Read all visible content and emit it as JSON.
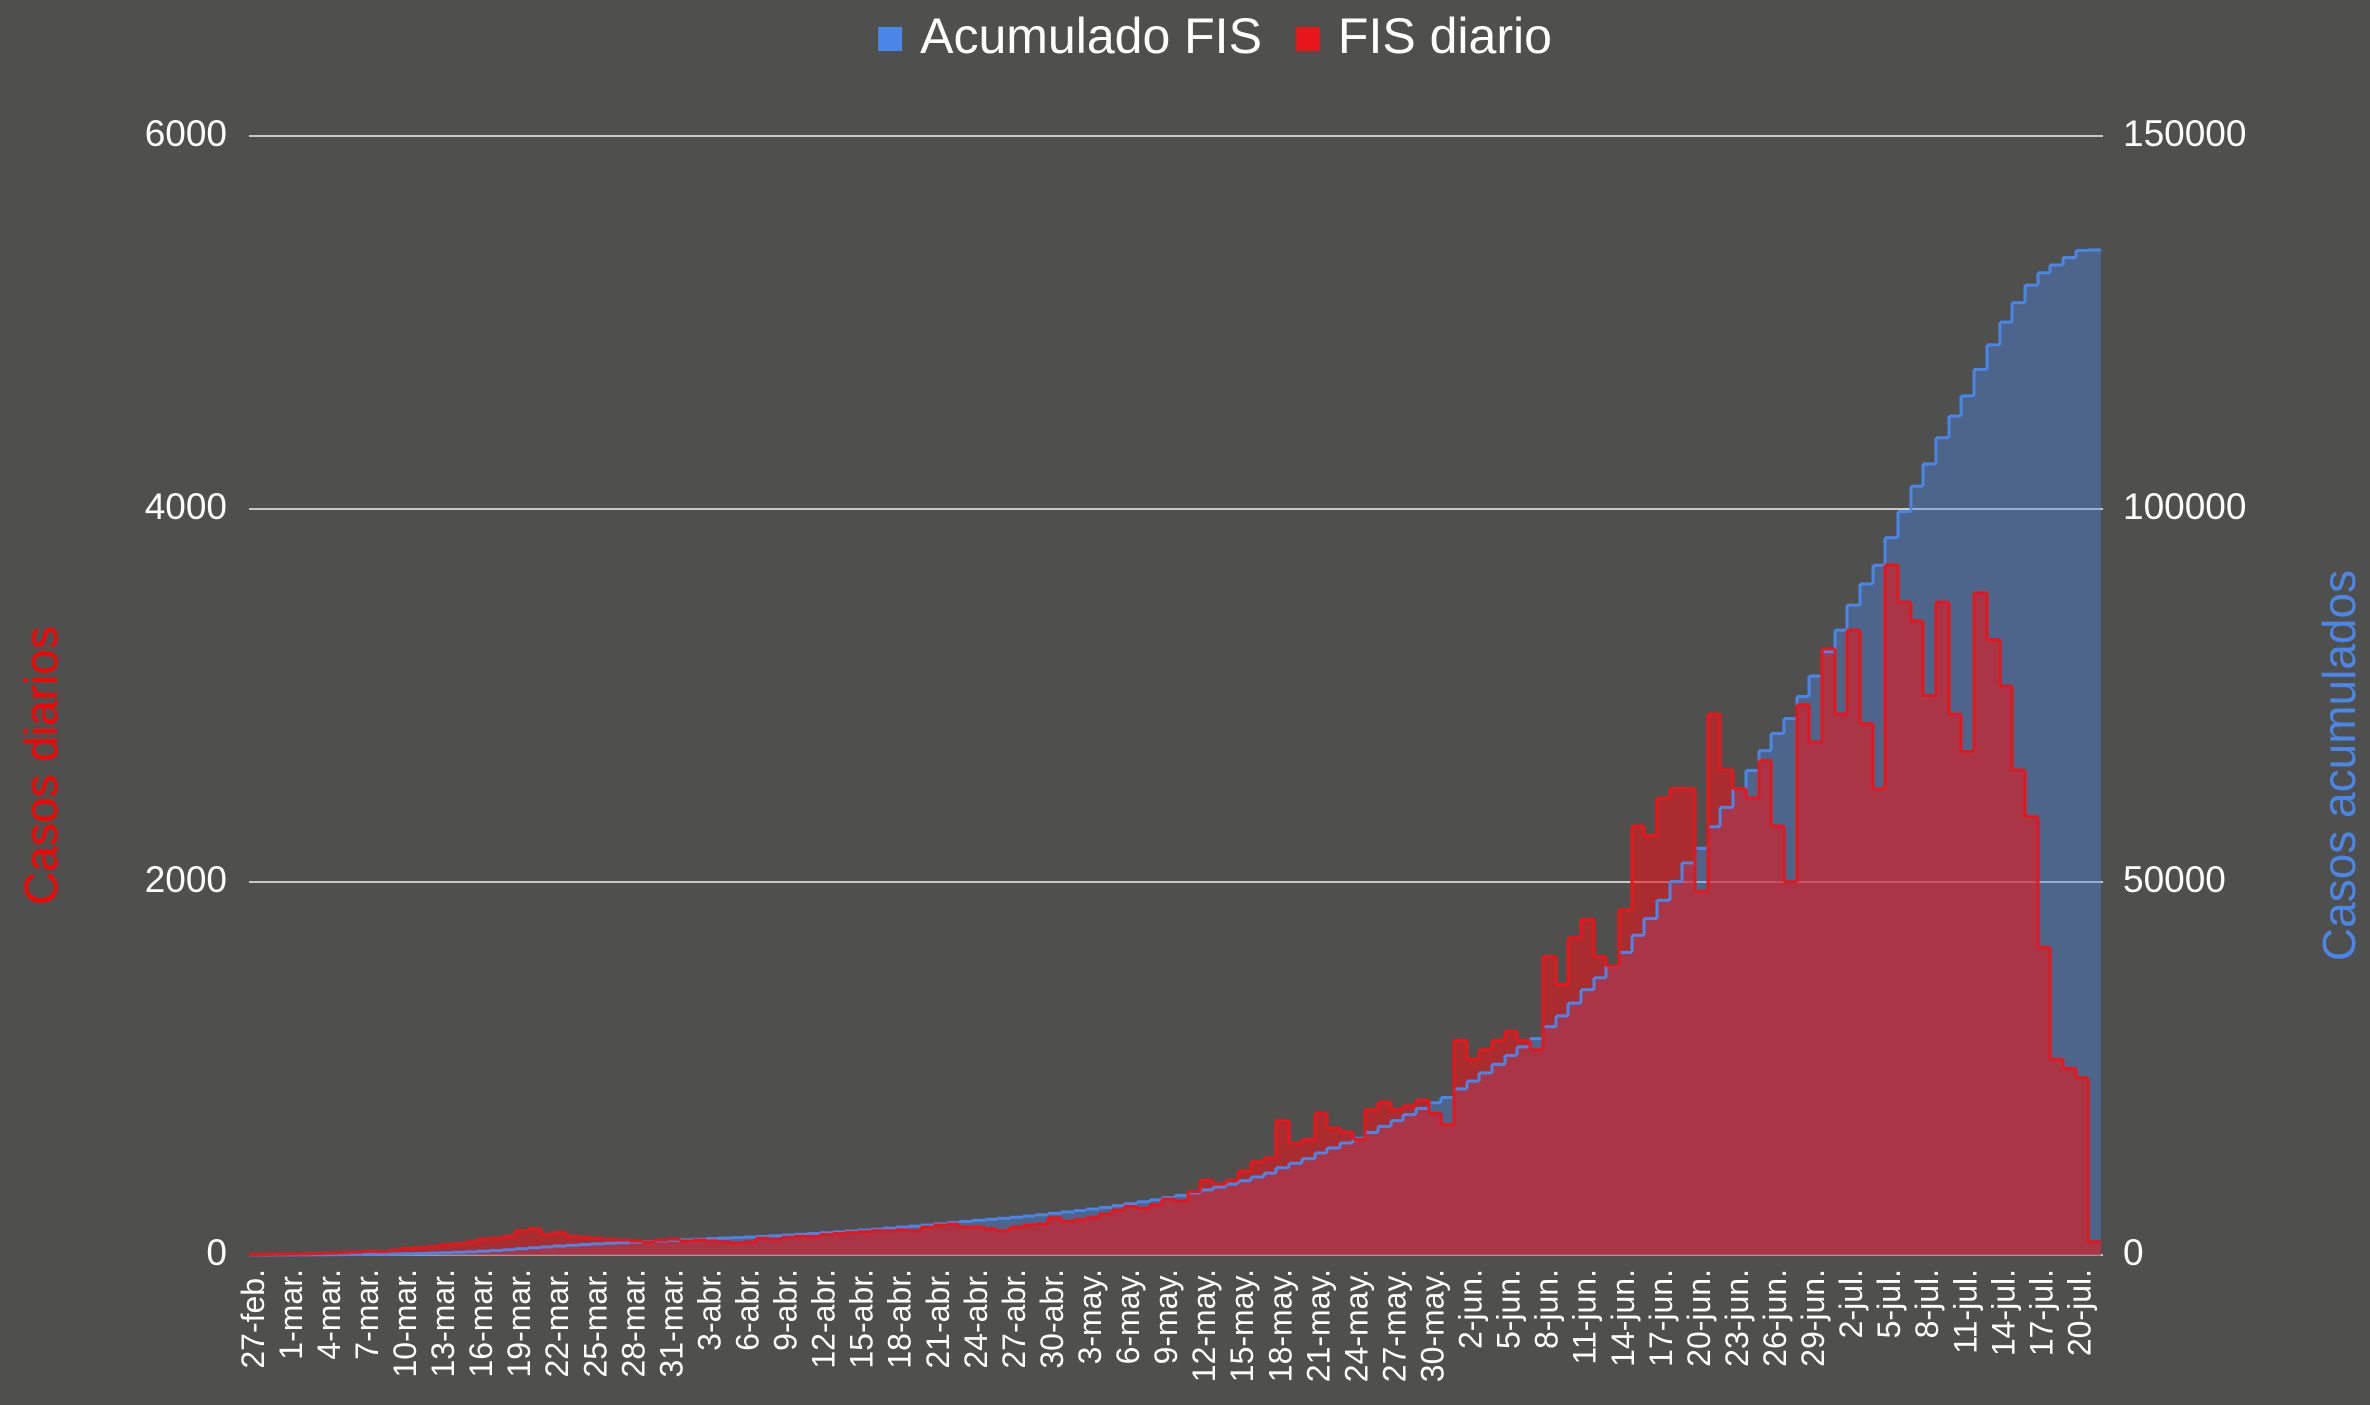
{
  "chart_data": {
    "type": "area",
    "step": true,
    "legend": "top",
    "grid": true,
    "background": "#4f4f4d",
    "y_label": "Casos diarios",
    "y_label_color": "#ff0000",
    "y2_label": "Casos acumulados",
    "y2_label_color": "#4a86e8",
    "ylim": [
      0,
      6000
    ],
    "yticks": [
      0,
      2000,
      4000,
      6000
    ],
    "y2lim": [
      0,
      150000
    ],
    "y2ticks": [
      0,
      50000,
      100000,
      150000
    ],
    "categories": [
      "27-feb.",
      null,
      null,
      "1-mar.",
      null,
      null,
      "4-mar.",
      null,
      null,
      "7-mar.",
      null,
      null,
      "10-mar.",
      null,
      null,
      "13-mar.",
      null,
      null,
      "16-mar.",
      null,
      null,
      "19-mar.",
      null,
      null,
      "22-mar.",
      null,
      null,
      "25-mar.",
      null,
      null,
      "28-mar.",
      null,
      null,
      "31-mar.",
      null,
      null,
      "3-abr.",
      null,
      null,
      "6-abr.",
      null,
      null,
      "9-abr.",
      null,
      null,
      "12-abr.",
      null,
      null,
      "15-abr.",
      null,
      null,
      "18-abr.",
      null,
      null,
      "21-abr.",
      null,
      null,
      "24-abr.",
      null,
      null,
      "27-abr.",
      null,
      null,
      "30-abr.",
      null,
      null,
      "3-may.",
      null,
      null,
      "6-may.",
      null,
      null,
      "9-may.",
      null,
      null,
      "12-may.",
      null,
      null,
      "15-may.",
      null,
      null,
      "18-may.",
      null,
      null,
      "21-may.",
      null,
      null,
      "24-may.",
      null,
      null,
      "27-may.",
      null,
      null,
      "30-may.",
      null,
      null,
      "2-jun.",
      null,
      null,
      "5-jun.",
      null,
      null,
      "8-jun.",
      null,
      null,
      "11-jun.",
      null,
      null,
      "14-jun.",
      null,
      null,
      "17-jun.",
      null,
      null,
      "20-jun.",
      null,
      null,
      "23-jun.",
      null,
      null,
      "26-jun.",
      null,
      null,
      "29-jun.",
      null,
      null,
      "2-jul.",
      null,
      null,
      "5-jul.",
      null,
      null,
      "8-jul.",
      null,
      null,
      "11-jul.",
      null,
      null,
      "14-jul.",
      null,
      null,
      "17-jul.",
      null,
      null,
      "20-jul.",
      null
    ],
    "series": [
      {
        "name": "Acumulado FIS",
        "color": "#4a86e8",
        "axis": "y2",
        "values": [
          2,
          5,
          9,
          14,
          20,
          28,
          38,
          50,
          65,
          85,
          103,
          128,
          163,
          203,
          248,
          303,
          363,
          433,
          518,
          608,
          708,
          838,
          978,
          1088,
          1208,
          1308,
          1403,
          1493,
          1578,
          1658,
          1733,
          1803,
          1883,
          1968,
          2043,
          2123,
          2198,
          2268,
          2333,
          2403,
          2493,
          2578,
          2673,
          2773,
          2873,
          2983,
          3098,
          3218,
          3343,
          3473,
          3603,
          3738,
          3868,
          4018,
          4178,
          4343,
          4493,
          4643,
          4783,
          4913,
          5063,
          5223,
          5388,
          5588,
          5768,
          5958,
          6158,
          6378,
          6618,
          6878,
          7128,
          7398,
          7698,
          7988,
          8328,
          8728,
          9108,
          9508,
          9958,
          10458,
          10978,
          11698,
          12298,
          12918,
          13678,
          14358,
          15018,
          15638,
          16418,
          17238,
          18018,
          18818,
          19648,
          20408,
          21108,
          22258,
          23308,
          24408,
          25558,
          26758,
          27908,
          29008,
          30608,
          32058,
          33758,
          35558,
          37158,
          38708,
          40558,
          42858,
          45108,
          47558,
          50058,
          52558,
          54508,
          57408,
          60008,
          62508,
          64958,
          67608,
          69908,
          71908,
          74858,
          77608,
          80858,
          83758,
          87108,
          89958,
          92458,
          96158,
          99658,
          103058,
          106058,
          109558,
          112458,
          115158,
          118708,
          122008,
          125058,
          127658,
          130008,
          131658,
          132708,
          133708,
          134658,
          134728
        ]
      },
      {
        "name": "FIS diario",
        "color": "#e8161b",
        "axis": "y",
        "values": [
          2,
          3,
          4,
          5,
          6,
          8,
          10,
          12,
          15,
          20,
          18,
          25,
          35,
          40,
          45,
          55,
          60,
          70,
          85,
          90,
          100,
          130,
          140,
          110,
          120,
          100,
          95,
          90,
          85,
          80,
          75,
          70,
          80,
          85,
          75,
          80,
          75,
          70,
          65,
          70,
          90,
          85,
          95,
          100,
          100,
          110,
          115,
          120,
          125,
          130,
          130,
          135,
          130,
          150,
          160,
          165,
          150,
          150,
          140,
          130,
          150,
          160,
          165,
          200,
          180,
          190,
          200,
          220,
          240,
          260,
          250,
          270,
          300,
          290,
          340,
          400,
          380,
          400,
          450,
          500,
          520,
          720,
          600,
          620,
          760,
          680,
          660,
          620,
          780,
          820,
          780,
          800,
          830,
          760,
          700,
          1150,
          1050,
          1100,
          1150,
          1200,
          1150,
          1100,
          1600,
          1450,
          1700,
          1800,
          1600,
          1550,
          1850,
          2300,
          2250,
          2450,
          2500,
          2500,
          1950,
          2900,
          2600,
          2500,
          2450,
          2650,
          2300,
          2000,
          2950,
          2750,
          3250,
          2900,
          3350,
          2850,
          2500,
          3700,
          3500,
          3400,
          3000,
          3500,
          2900,
          2700,
          3550,
          3300,
          3050,
          2600,
          2350,
          1650,
          1050,
          1000,
          950,
          70
        ]
      }
    ]
  }
}
